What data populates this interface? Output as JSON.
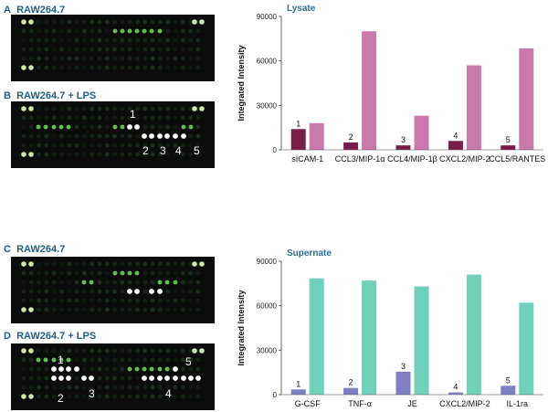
{
  "panels": [
    {
      "letter": "A",
      "label": "RAW264.7"
    },
    {
      "letter": "B",
      "label": "RAW264.7 + LPS"
    },
    {
      "letter": "C",
      "label": "RAW264.7"
    },
    {
      "letter": "D",
      "label": "RAW264.7 + LPS"
    }
  ],
  "array_annotations": {
    "B": [
      "1",
      "2",
      "3",
      "4",
      "5"
    ],
    "D": [
      "1",
      "2",
      "3",
      "4",
      "5"
    ]
  },
  "chart_data": [
    {
      "type": "bar",
      "title": "Lysate",
      "ylabel": "Integrated Intensity",
      "xlabel": "",
      "ylim": [
        0,
        90000
      ],
      "yticks": [
        0,
        30000,
        60000,
        90000
      ],
      "categories": [
        "sICAM-1",
        "CCL3/MIP-1α",
        "CCL4/MIP-1β",
        "CXCL2/MIP-2",
        "CCL5/RANTES"
      ],
      "bar_labels": [
        "1",
        "2",
        "3",
        "4",
        "5"
      ],
      "series": [
        {
          "values": [
            14000,
            5000,
            3000,
            6000,
            3000
          ],
          "color": "#7b1d4a"
        },
        {
          "values": [
            18000,
            80000,
            23000,
            57000,
            68500
          ],
          "color": "#c97aa8"
        }
      ]
    },
    {
      "type": "bar",
      "title": "Supernate",
      "ylabel": "Integrated Intensity",
      "xlabel": "",
      "ylim": [
        0,
        90000
      ],
      "yticks": [
        0,
        30000,
        60000,
        90000
      ],
      "categories": [
        "G-CSF",
        "TNF-α",
        "JE",
        "CXCL2/MIP-2",
        "IL-1ra"
      ],
      "bar_labels": [
        "1",
        "2",
        "3",
        "4",
        "5"
      ],
      "series": [
        {
          "values": [
            3500,
            4500,
            15500,
            1500,
            6000
          ],
          "color": "#7f7fc4"
        },
        {
          "values": [
            78500,
            77000,
            73000,
            81000,
            62000
          ],
          "color": "#6fd1b9"
        }
      ]
    }
  ]
}
